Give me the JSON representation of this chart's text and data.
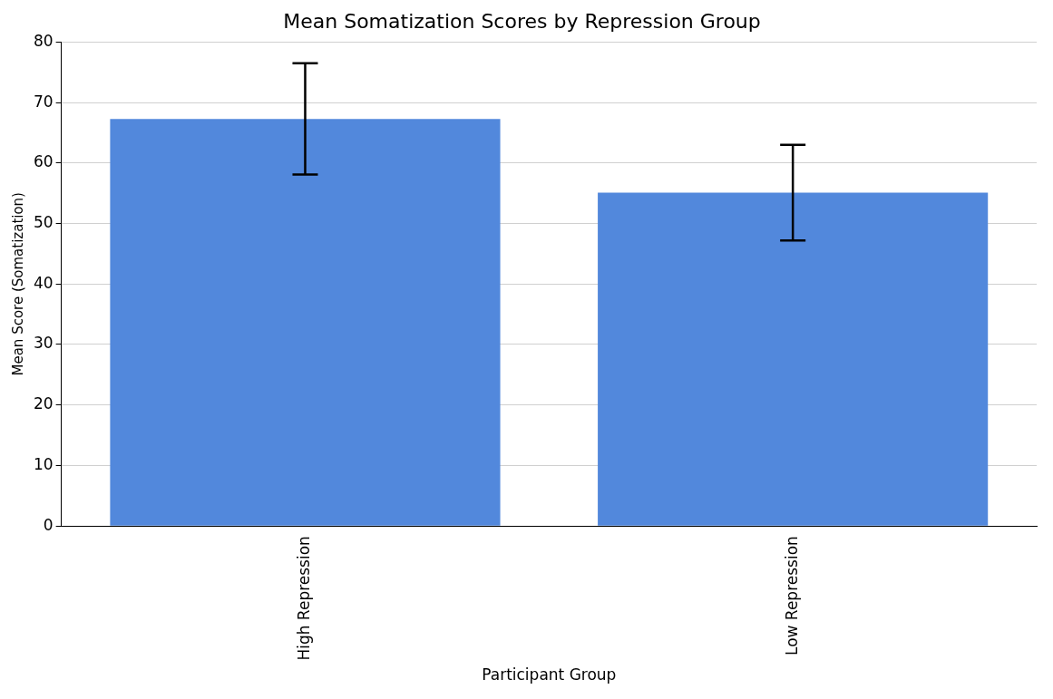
{
  "chart_data": {
    "type": "bar",
    "title": "Mean Somatization Scores by Repression Group",
    "xlabel": "Participant Group",
    "ylabel": "Mean Score (Somatization)",
    "categories": [
      "High Repression",
      "Low Repression"
    ],
    "values": [
      67.3,
      55.1
    ],
    "errors": [
      9.2,
      7.9
    ],
    "color": "#5288dc",
    "ylim": [
      0,
      80
    ],
    "yticks": [
      0,
      10,
      20,
      30,
      40,
      50,
      60,
      70,
      80
    ],
    "grid": "y"
  }
}
